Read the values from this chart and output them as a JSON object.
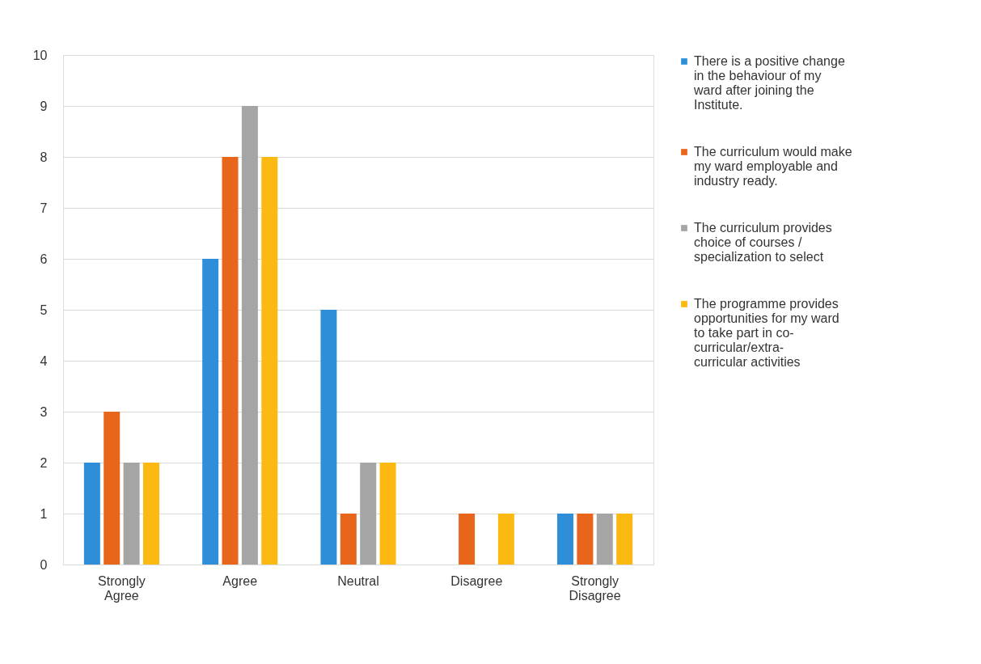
{
  "chart_data": {
    "type": "bar",
    "categories": [
      "Strongly Agree",
      "Agree",
      "Neutral",
      "Disagree",
      "Strongly Disagree"
    ],
    "series": [
      {
        "name": "There is a positive change in the behaviour of my ward after joining the Institute.",
        "color": "#2e8fd8",
        "values": [
          2,
          6,
          5,
          0,
          1
        ]
      },
      {
        "name": "The curriculum would make my ward employable and industry ready.",
        "color": "#e8651c",
        "values": [
          3,
          8,
          1,
          1,
          1
        ]
      },
      {
        "name": "The curriculum provides choice of courses / specialization to select",
        "color": "#a5a5a5",
        "values": [
          2,
          9,
          2,
          0,
          1
        ]
      },
      {
        "name": "The programme provides opportunities for my ward to take part in co-curricular/extra-curricular activities",
        "color": "#fcb912",
        "values": [
          2,
          8,
          2,
          1,
          1
        ]
      }
    ],
    "ylim": [
      0,
      10
    ],
    "yticks": [
      0,
      1,
      2,
      3,
      4,
      5,
      6,
      7,
      8,
      9,
      10
    ],
    "grid": "y",
    "legend": "right"
  }
}
